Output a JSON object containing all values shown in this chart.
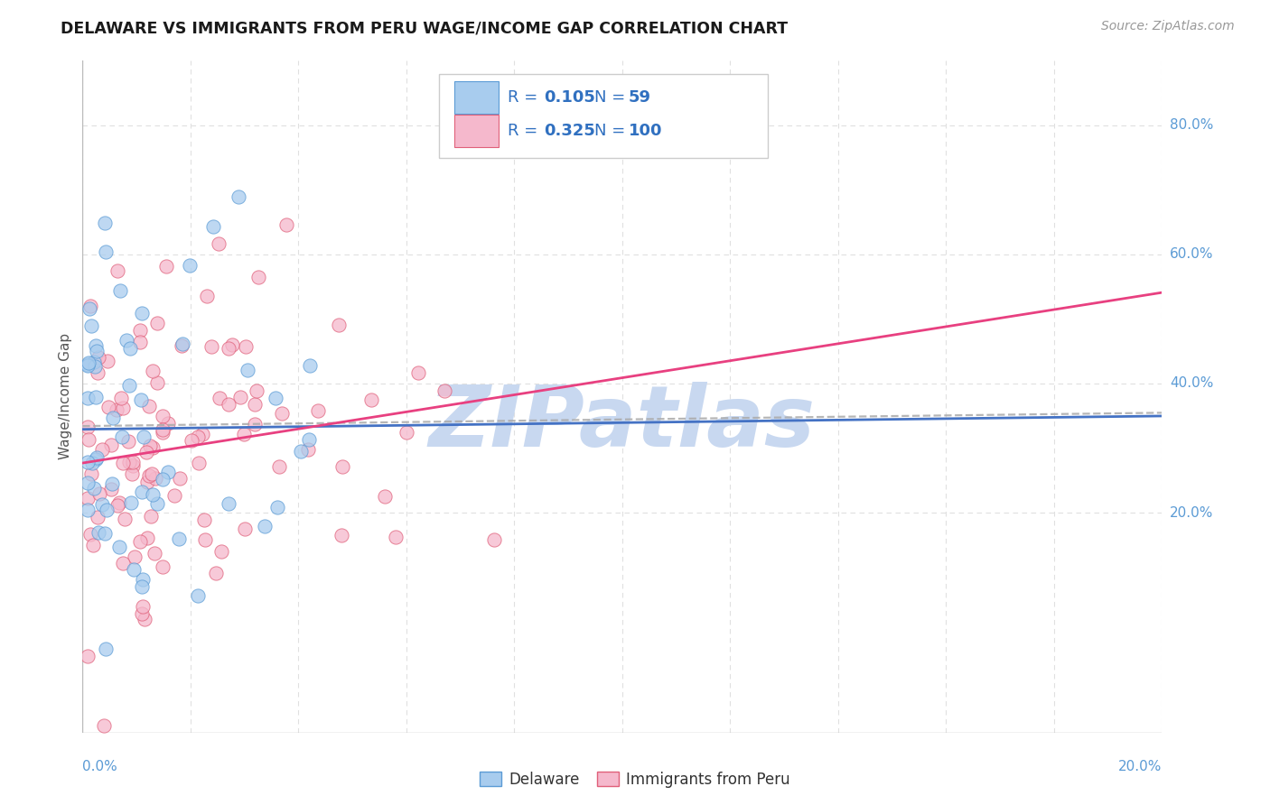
{
  "title": "DELAWARE VS IMMIGRANTS FROM PERU WAGE/INCOME GAP CORRELATION CHART",
  "source": "Source: ZipAtlas.com",
  "ylabel": "Wage/Income Gap",
  "xmin": 0.0,
  "xmax": 0.2,
  "ymin": -0.14,
  "ymax": 0.9,
  "yticks": [
    0.2,
    0.4,
    0.6,
    0.8
  ],
  "ytick_labels": [
    "20.0%",
    "40.0%",
    "60.0%",
    "80.0%"
  ],
  "xtick_left": "0.0%",
  "xtick_right": "20.0%",
  "color_del_fill": "#A8CCEE",
  "color_del_edge": "#5B9BD5",
  "color_peru_fill": "#F5B8CC",
  "color_peru_edge": "#E0607A",
  "color_del_line": "#4472C4",
  "color_peru_line": "#E84080",
  "color_dashed": "#AAAAAA",
  "color_text_blue": "#3070C0",
  "color_text_dark": "#333333",
  "color_axis_blue": "#5B9BD5",
  "color_grid": "#E0E0E0",
  "color_watermark": "#C8D8F0",
  "color_bg": "#FFFFFF",
  "watermark": "ZIPatlas",
  "title_fontsize": 12.5,
  "source_fontsize": 10,
  "legend_fontsize": 13,
  "ylabel_fontsize": 11,
  "tick_fontsize": 11,
  "scatter_size": 120,
  "scatter_alpha": 0.75,
  "line_width": 2.0,
  "seed_del": 42,
  "seed_peru": 7,
  "n_del": 59,
  "n_peru": 100
}
